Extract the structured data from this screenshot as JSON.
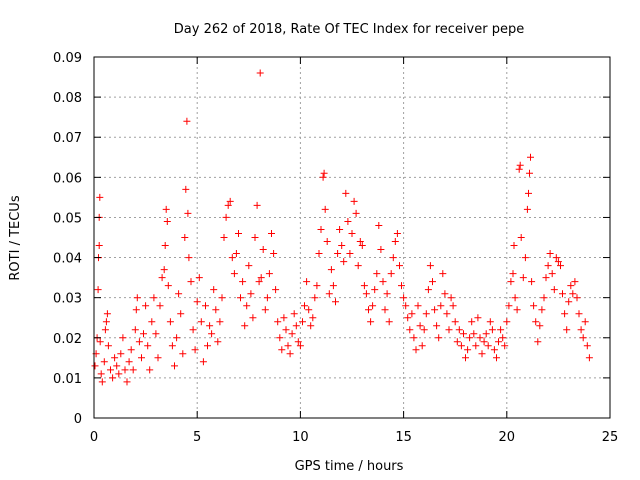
{
  "chart_data": {
    "type": "scatter",
    "title": "Day 262 of 2018, Rate Of TEC Index for receiver pepe",
    "xlabel": "GPS time / hours",
    "ylabel": "ROTI / TECUs",
    "xlim": [
      0,
      25
    ],
    "ylim": [
      0,
      0.09
    ],
    "xticks": [
      "0",
      "5",
      "10",
      "15",
      "20",
      "25"
    ],
    "yticks": [
      "0",
      "0.01",
      "0.02",
      "0.03",
      "0.04",
      "0.05",
      "0.06",
      "0.07",
      "0.08",
      "0.09"
    ],
    "grid": true,
    "marker": "plus",
    "color": "#ff0000",
    "series": [
      {
        "points": [
          [
            0.05,
            0.013
          ],
          [
            0.1,
            0.016
          ],
          [
            0.15,
            0.02
          ],
          [
            0.2,
            0.032
          ],
          [
            0.22,
            0.04
          ],
          [
            0.25,
            0.043
          ],
          [
            0.25,
            0.05
          ],
          [
            0.28,
            0.055
          ],
          [
            0.3,
            0.019
          ],
          [
            0.35,
            0.011
          ],
          [
            0.4,
            0.009
          ],
          [
            0.5,
            0.014
          ],
          [
            0.55,
            0.022
          ],
          [
            0.6,
            0.024
          ],
          [
            0.65,
            0.026
          ],
          [
            0.7,
            0.018
          ],
          [
            0.8,
            0.012
          ],
          [
            0.9,
            0.01
          ],
          [
            1.0,
            0.015
          ],
          [
            1.1,
            0.013
          ],
          [
            1.2,
            0.011
          ],
          [
            1.3,
            0.016
          ],
          [
            1.4,
            0.02
          ],
          [
            1.5,
            0.012
          ],
          [
            1.6,
            0.009
          ],
          [
            1.7,
            0.014
          ],
          [
            1.8,
            0.017
          ],
          [
            1.9,
            0.012
          ],
          [
            2.0,
            0.022
          ],
          [
            2.05,
            0.027
          ],
          [
            2.1,
            0.03
          ],
          [
            2.2,
            0.019
          ],
          [
            2.3,
            0.015
          ],
          [
            2.4,
            0.021
          ],
          [
            2.5,
            0.028
          ],
          [
            2.6,
            0.018
          ],
          [
            2.7,
            0.012
          ],
          [
            2.8,
            0.024
          ],
          [
            2.9,
            0.03
          ],
          [
            3.0,
            0.021
          ],
          [
            3.1,
            0.015
          ],
          [
            3.2,
            0.028
          ],
          [
            3.3,
            0.035
          ],
          [
            3.4,
            0.037
          ],
          [
            3.45,
            0.043
          ],
          [
            3.5,
            0.052
          ],
          [
            3.55,
            0.049
          ],
          [
            3.6,
            0.033
          ],
          [
            3.7,
            0.024
          ],
          [
            3.8,
            0.018
          ],
          [
            3.9,
            0.013
          ],
          [
            4.0,
            0.02
          ],
          [
            4.1,
            0.031
          ],
          [
            4.2,
            0.026
          ],
          [
            4.3,
            0.016
          ],
          [
            4.4,
            0.045
          ],
          [
            4.45,
            0.057
          ],
          [
            4.5,
            0.074
          ],
          [
            4.55,
            0.051
          ],
          [
            4.6,
            0.04
          ],
          [
            4.7,
            0.034
          ],
          [
            4.8,
            0.022
          ],
          [
            4.9,
            0.017
          ],
          [
            5.0,
            0.029
          ],
          [
            5.1,
            0.035
          ],
          [
            5.2,
            0.024
          ],
          [
            5.3,
            0.014
          ],
          [
            5.4,
            0.028
          ],
          [
            5.5,
            0.018
          ],
          [
            5.6,
            0.023
          ],
          [
            5.7,
            0.021
          ],
          [
            5.8,
            0.032
          ],
          [
            5.9,
            0.027
          ],
          [
            6.0,
            0.019
          ],
          [
            6.1,
            0.024
          ],
          [
            6.2,
            0.03
          ],
          [
            6.3,
            0.045
          ],
          [
            6.4,
            0.05
          ],
          [
            6.5,
            0.053
          ],
          [
            6.6,
            0.054
          ],
          [
            6.7,
            0.04
          ],
          [
            6.8,
            0.036
          ],
          [
            6.9,
            0.041
          ],
          [
            7.0,
            0.046
          ],
          [
            7.1,
            0.03
          ],
          [
            7.2,
            0.034
          ],
          [
            7.3,
            0.023
          ],
          [
            7.4,
            0.028
          ],
          [
            7.5,
            0.038
          ],
          [
            7.6,
            0.031
          ],
          [
            7.7,
            0.025
          ],
          [
            7.8,
            0.045
          ],
          [
            7.9,
            0.053
          ],
          [
            8.0,
            0.034
          ],
          [
            8.05,
            0.086
          ],
          [
            8.1,
            0.035
          ],
          [
            8.2,
            0.042
          ],
          [
            8.3,
            0.027
          ],
          [
            8.4,
            0.03
          ],
          [
            8.5,
            0.036
          ],
          [
            8.6,
            0.046
          ],
          [
            8.7,
            0.041
          ],
          [
            8.8,
            0.032
          ],
          [
            8.9,
            0.024
          ],
          [
            9.0,
            0.02
          ],
          [
            9.1,
            0.017
          ],
          [
            9.2,
            0.025
          ],
          [
            9.3,
            0.022
          ],
          [
            9.4,
            0.018
          ],
          [
            9.5,
            0.016
          ],
          [
            9.6,
            0.021
          ],
          [
            9.7,
            0.026
          ],
          [
            9.8,
            0.023
          ],
          [
            9.9,
            0.019
          ],
          [
            10.0,
            0.018
          ],
          [
            10.1,
            0.024
          ],
          [
            10.2,
            0.028
          ],
          [
            10.3,
            0.034
          ],
          [
            10.4,
            0.027
          ],
          [
            10.5,
            0.023
          ],
          [
            10.6,
            0.025
          ],
          [
            10.7,
            0.03
          ],
          [
            10.8,
            0.033
          ],
          [
            10.9,
            0.041
          ],
          [
            11.0,
            0.047
          ],
          [
            11.1,
            0.06
          ],
          [
            11.15,
            0.061
          ],
          [
            11.2,
            0.052
          ],
          [
            11.3,
            0.044
          ],
          [
            11.4,
            0.031
          ],
          [
            11.5,
            0.037
          ],
          [
            11.6,
            0.033
          ],
          [
            11.7,
            0.029
          ],
          [
            11.8,
            0.041
          ],
          [
            11.9,
            0.047
          ],
          [
            12.0,
            0.043
          ],
          [
            12.1,
            0.039
          ],
          [
            12.2,
            0.056
          ],
          [
            12.3,
            0.049
          ],
          [
            12.4,
            0.041
          ],
          [
            12.5,
            0.046
          ],
          [
            12.6,
            0.054
          ],
          [
            12.7,
            0.051
          ],
          [
            12.8,
            0.038
          ],
          [
            12.9,
            0.044
          ],
          [
            13.0,
            0.043
          ],
          [
            13.1,
            0.033
          ],
          [
            13.2,
            0.031
          ],
          [
            13.3,
            0.027
          ],
          [
            13.4,
            0.024
          ],
          [
            13.5,
            0.028
          ],
          [
            13.6,
            0.032
          ],
          [
            13.7,
            0.036
          ],
          [
            13.8,
            0.048
          ],
          [
            13.9,
            0.042
          ],
          [
            14.0,
            0.034
          ],
          [
            14.1,
            0.027
          ],
          [
            14.2,
            0.031
          ],
          [
            14.3,
            0.024
          ],
          [
            14.4,
            0.036
          ],
          [
            14.5,
            0.04
          ],
          [
            14.6,
            0.044
          ],
          [
            14.7,
            0.046
          ],
          [
            14.8,
            0.038
          ],
          [
            14.9,
            0.033
          ],
          [
            15.0,
            0.03
          ],
          [
            15.1,
            0.028
          ],
          [
            15.2,
            0.025
          ],
          [
            15.3,
            0.022
          ],
          [
            15.4,
            0.026
          ],
          [
            15.5,
            0.02
          ],
          [
            15.6,
            0.017
          ],
          [
            15.7,
            0.028
          ],
          [
            15.8,
            0.023
          ],
          [
            15.9,
            0.018
          ],
          [
            16.0,
            0.022
          ],
          [
            16.1,
            0.026
          ],
          [
            16.2,
            0.032
          ],
          [
            16.3,
            0.038
          ],
          [
            16.4,
            0.034
          ],
          [
            16.5,
            0.027
          ],
          [
            16.6,
            0.023
          ],
          [
            16.7,
            0.02
          ],
          [
            16.8,
            0.028
          ],
          [
            16.9,
            0.036
          ],
          [
            17.0,
            0.031
          ],
          [
            17.1,
            0.026
          ],
          [
            17.2,
            0.022
          ],
          [
            17.3,
            0.03
          ],
          [
            17.4,
            0.028
          ],
          [
            17.5,
            0.024
          ],
          [
            17.6,
            0.019
          ],
          [
            17.7,
            0.022
          ],
          [
            17.8,
            0.018
          ],
          [
            17.9,
            0.021
          ],
          [
            18.0,
            0.015
          ],
          [
            18.1,
            0.017
          ],
          [
            18.2,
            0.02
          ],
          [
            18.3,
            0.024
          ],
          [
            18.4,
            0.021
          ],
          [
            18.5,
            0.018
          ],
          [
            18.6,
            0.025
          ],
          [
            18.7,
            0.02
          ],
          [
            18.8,
            0.016
          ],
          [
            18.9,
            0.019
          ],
          [
            19.0,
            0.021
          ],
          [
            19.1,
            0.018
          ],
          [
            19.2,
            0.024
          ],
          [
            19.3,
            0.022
          ],
          [
            19.4,
            0.017
          ],
          [
            19.5,
            0.015
          ],
          [
            19.6,
            0.019
          ],
          [
            19.7,
            0.022
          ],
          [
            19.8,
            0.02
          ],
          [
            19.9,
            0.018
          ],
          [
            20.0,
            0.024
          ],
          [
            20.1,
            0.028
          ],
          [
            20.2,
            0.034
          ],
          [
            20.3,
            0.036
          ],
          [
            20.35,
            0.043
          ],
          [
            20.4,
            0.03
          ],
          [
            20.5,
            0.027
          ],
          [
            20.6,
            0.062
          ],
          [
            20.65,
            0.063
          ],
          [
            20.7,
            0.045
          ],
          [
            20.8,
            0.035
          ],
          [
            20.9,
            0.04
          ],
          [
            21.0,
            0.052
          ],
          [
            21.05,
            0.056
          ],
          [
            21.1,
            0.061
          ],
          [
            21.15,
            0.065
          ],
          [
            21.2,
            0.034
          ],
          [
            21.3,
            0.028
          ],
          [
            21.4,
            0.024
          ],
          [
            21.5,
            0.019
          ],
          [
            21.6,
            0.023
          ],
          [
            21.7,
            0.027
          ],
          [
            21.8,
            0.03
          ],
          [
            21.9,
            0.035
          ],
          [
            22.0,
            0.038
          ],
          [
            22.1,
            0.041
          ],
          [
            22.2,
            0.036
          ],
          [
            22.3,
            0.032
          ],
          [
            22.4,
            0.04
          ],
          [
            22.5,
            0.039
          ],
          [
            22.6,
            0.038
          ],
          [
            22.7,
            0.031
          ],
          [
            22.8,
            0.026
          ],
          [
            22.9,
            0.022
          ],
          [
            23.0,
            0.029
          ],
          [
            23.1,
            0.033
          ],
          [
            23.2,
            0.031
          ],
          [
            23.3,
            0.034
          ],
          [
            23.4,
            0.03
          ],
          [
            23.5,
            0.026
          ],
          [
            23.6,
            0.022
          ],
          [
            23.7,
            0.02
          ],
          [
            23.8,
            0.024
          ],
          [
            23.9,
            0.018
          ],
          [
            24.0,
            0.015
          ]
        ]
      }
    ]
  }
}
